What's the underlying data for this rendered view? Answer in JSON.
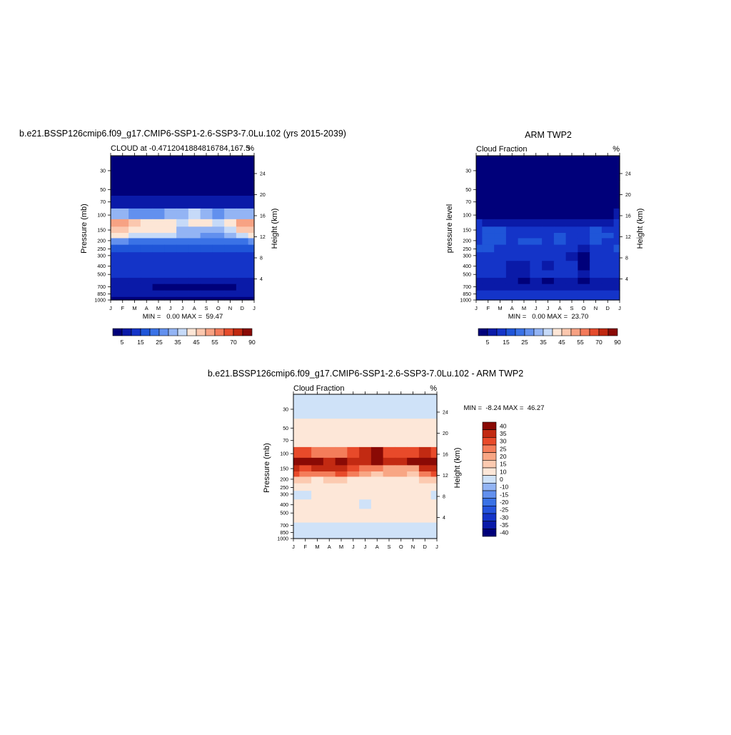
{
  "panels": {
    "model": {
      "title": "b.e21.BSSP126cmip6.f09_g17.CMIP6-SSP1-2.6-SSP3-7.0Lu.102 (yrs 2015-2039)",
      "left_label": "CLOUD at -0.4712041884816784,167.5",
      "right_label": "%",
      "ylabel": "Pressure (mb)",
      "y2label": "Height (km)",
      "stats": "MIN =   0.00 MAX =  59.47"
    },
    "obs": {
      "title": "ARM TWP2",
      "left_label": "Cloud Fraction",
      "right_label": "%",
      "ylabel": "pressure level",
      "y2label": "Height (km)",
      "stats": "MIN =   0.00 MAX =  23.70"
    },
    "diff": {
      "title": "b.e21.BSSP126cmip6.f09_g17.CMIP6-SSP1-2.6-SSP3-7.0Lu.102 - ARM TWP2",
      "left_label": "Cloud Fraction",
      "right_label": "%",
      "ylabel": "Pressure (mb)",
      "y2label": "Height (km)",
      "stats": "MIN =  -8.24 MAX =  46.27"
    }
  },
  "chart_data": [
    {
      "type": "heatmap",
      "title": "b.e21.BSSP126cmip6.f09_g17.CMIP6-SSP1-2.6-SSP3-7.0Lu.102 (yrs 2015-2039)",
      "subtitle": "CLOUD at -0.4712041884816784,167.5",
      "units": "%",
      "xlabel": "",
      "ylabel": "Pressure (mb)",
      "y2label": "Height (km)",
      "x_ticks": [
        "J",
        "F",
        "M",
        "A",
        "M",
        "J",
        "J",
        "A",
        "S",
        "O",
        "N",
        "D",
        "J"
      ],
      "y_ticks": [
        30,
        50,
        70,
        100,
        150,
        200,
        250,
        300,
        400,
        500,
        700,
        850,
        1000
      ],
      "y2_ticks": [
        24,
        20,
        16,
        12,
        8,
        4
      ],
      "ylim": [
        1000,
        20
      ],
      "y_scale": "log",
      "min": 0.0,
      "max": 59.47,
      "colorbar_levels": [
        5,
        10,
        15,
        20,
        25,
        30,
        35,
        40,
        45,
        50,
        55,
        60,
        70,
        80,
        90
      ],
      "colorbar_labels": [
        "5",
        "15",
        "25",
        "35",
        "45",
        "55",
        "70",
        "90"
      ],
      "levels_mb": [
        30,
        50,
        70,
        100,
        125,
        150,
        175,
        200,
        250,
        300,
        400,
        500,
        600,
        700,
        850,
        1000
      ],
      "values": [
        [
          2,
          2,
          2,
          2,
          2,
          2,
          2,
          2,
          2,
          2,
          2,
          2,
          2
        ],
        [
          3,
          3,
          3,
          3,
          3,
          3,
          3,
          3,
          3,
          3,
          3,
          3,
          3
        ],
        [
          9,
          9,
          7,
          5,
          5,
          5,
          5,
          5,
          5,
          5,
          5,
          7,
          9
        ],
        [
          32,
          30,
          28,
          25,
          25,
          30,
          32,
          38,
          30,
          28,
          30,
          32,
          32
        ],
        [
          52,
          50,
          45,
          40,
          42,
          40,
          38,
          42,
          40,
          38,
          42,
          52,
          52
        ],
        [
          48,
          46,
          44,
          42,
          42,
          40,
          32,
          33,
          30,
          30,
          35,
          46,
          48
        ],
        [
          40,
          40,
          38,
          38,
          38,
          36,
          32,
          30,
          28,
          28,
          32,
          38,
          40
        ],
        [
          25,
          25,
          24,
          24,
          24,
          24,
          22,
          22,
          20,
          20,
          22,
          24,
          25
        ],
        [
          15,
          15,
          15,
          15,
          15,
          15,
          15,
          15,
          15,
          15,
          15,
          15,
          15
        ],
        [
          13,
          12,
          12,
          12,
          12,
          12,
          12,
          12,
          12,
          12,
          12,
          12,
          13
        ],
        [
          12,
          12,
          13,
          12,
          12,
          12,
          10,
          11,
          10,
          11,
          11,
          12,
          12
        ],
        [
          11,
          11,
          11,
          11,
          12,
          13,
          10,
          10,
          11,
          12,
          11,
          11,
          11
        ],
        [
          9,
          9,
          9,
          9,
          9,
          9,
          9,
          9,
          9,
          9,
          9,
          9,
          9
        ],
        [
          5,
          5,
          5,
          5,
          4,
          3,
          4,
          4,
          2,
          4,
          4,
          5,
          5
        ],
        [
          5,
          5,
          5,
          5,
          5,
          5,
          5,
          5,
          5,
          5,
          5,
          5,
          5
        ],
        [
          3,
          3,
          3,
          3,
          3,
          3,
          3,
          3,
          3,
          3,
          3,
          3,
          3
        ]
      ]
    },
    {
      "type": "heatmap",
      "title": "ARM TWP2",
      "subtitle": "Cloud Fraction",
      "units": "%",
      "xlabel": "",
      "ylabel": "pressure level",
      "y2label": "Height (km)",
      "x_ticks": [
        "J",
        "F",
        "M",
        "A",
        "M",
        "J",
        "J",
        "A",
        "S",
        "O",
        "N",
        "D",
        "J"
      ],
      "y_ticks": [
        30,
        50,
        70,
        100,
        150,
        200,
        250,
        300,
        400,
        500,
        700,
        850,
        1000
      ],
      "y2_ticks": [
        24,
        20,
        16,
        12,
        8,
        4
      ],
      "ylim": [
        1000,
        20
      ],
      "y_scale": "log",
      "min": 0.0,
      "max": 23.7,
      "colorbar_levels": [
        5,
        10,
        15,
        20,
        25,
        30,
        35,
        40,
        45,
        50,
        55,
        60,
        70,
        80,
        90
      ],
      "colorbar_labels": [
        "5",
        "15",
        "25",
        "35",
        "45",
        "55",
        "70",
        "90"
      ],
      "levels_mb": [
        30,
        50,
        70,
        100,
        125,
        150,
        175,
        200,
        250,
        300,
        400,
        500,
        600,
        700,
        850,
        1000
      ],
      "values": [
        [
          2,
          2,
          2,
          2,
          2,
          2,
          2,
          2,
          2,
          2,
          2,
          2,
          2
        ],
        [
          2,
          2,
          2,
          2,
          2,
          2,
          2,
          2,
          2,
          2,
          2,
          2,
          2
        ],
        [
          2,
          2,
          2,
          2,
          2,
          2,
          2,
          2,
          2,
          2,
          2,
          2,
          2
        ],
        [
          4,
          4,
          4,
          3,
          3,
          3,
          3,
          3,
          3,
          3,
          3,
          4,
          5
        ],
        [
          10,
          8,
          8,
          7,
          7,
          6,
          6,
          7,
          7,
          6,
          7,
          9,
          11
        ],
        [
          14,
          18,
          15,
          13,
          12,
          14,
          13,
          13,
          12,
          14,
          18,
          14,
          14
        ],
        [
          12,
          18,
          16,
          14,
          13,
          13,
          14,
          16,
          13,
          13,
          18,
          16,
          12
        ],
        [
          13,
          15,
          19,
          12,
          15,
          16,
          14,
          15,
          12,
          12,
          15,
          13,
          13
        ],
        [
          15,
          15,
          13,
          12,
          12,
          13,
          12,
          12,
          11,
          8,
          12,
          13,
          15
        ],
        [
          12,
          12,
          11,
          10,
          11,
          11,
          11,
          11,
          9,
          4,
          11,
          11,
          12
        ],
        [
          11,
          11,
          10,
          9,
          9,
          10,
          9,
          10,
          10,
          4,
          10,
          10,
          11
        ],
        [
          10,
          10,
          10,
          9,
          9,
          10,
          10,
          10,
          10,
          7,
          10,
          10,
          10
        ],
        [
          8,
          8,
          8,
          8,
          4,
          7,
          4,
          7,
          7,
          4,
          7,
          8,
          8
        ],
        [
          7,
          7,
          7,
          7,
          7,
          7,
          7,
          7,
          7,
          7,
          7,
          7,
          7
        ],
        [
          10,
          10,
          10,
          10,
          10,
          10,
          10,
          10,
          10,
          10,
          10,
          10,
          10
        ],
        [
          12,
          12,
          12,
          12,
          12,
          12,
          12,
          12,
          12,
          12,
          12,
          12,
          12
        ]
      ]
    },
    {
      "type": "heatmap",
      "title": "b.e21.BSSP126cmip6.f09_g17.CMIP6-SSP1-2.6-SSP3-7.0Lu.102 - ARM TWP2",
      "subtitle": "Cloud Fraction",
      "units": "%",
      "xlabel": "",
      "ylabel": "Pressure (mb)",
      "y2label": "Height (km)",
      "x_ticks": [
        "J",
        "F",
        "M",
        "A",
        "M",
        "J",
        "J",
        "A",
        "S",
        "O",
        "N",
        "D",
        "J"
      ],
      "y_ticks": [
        30,
        50,
        70,
        100,
        150,
        200,
        250,
        300,
        400,
        500,
        700,
        850,
        1000
      ],
      "y2_ticks": [
        24,
        20,
        16,
        12,
        8,
        4
      ],
      "ylim": [
        1000,
        20
      ],
      "y_scale": "log",
      "min": -8.24,
      "max": 46.27,
      "colorbar_levels": [
        -40,
        -35,
        -30,
        -25,
        -20,
        -15,
        -10,
        0,
        10,
        15,
        20,
        25,
        30,
        35,
        40
      ],
      "colorbar_labels": [
        "40",
        "35",
        "30",
        "25",
        "20",
        "15",
        "10",
        "0",
        "-10",
        "-15",
        "-20",
        "-25",
        "-30",
        "-35",
        "-40"
      ],
      "levels_mb": [
        30,
        50,
        70,
        100,
        125,
        150,
        175,
        200,
        250,
        300,
        400,
        500,
        600,
        700,
        850,
        1000
      ],
      "values": [
        [
          -3,
          -3,
          -3,
          -3,
          -3,
          -3,
          -3,
          -3,
          -3,
          -3,
          -3,
          -3,
          -3
        ],
        [
          2,
          2,
          2,
          2,
          2,
          2,
          2,
          2,
          2,
          2,
          2,
          2,
          2
        ],
        [
          4,
          4,
          4,
          4,
          4,
          4,
          4,
          4,
          4,
          4,
          4,
          4,
          4
        ],
        [
          28,
          26,
          24,
          22,
          22,
          26,
          30,
          36,
          28,
          26,
          28,
          30,
          28
        ],
        [
          44,
          42,
          38,
          34,
          36,
          34,
          32,
          36,
          34,
          32,
          36,
          44,
          42
        ],
        [
          33,
          28,
          30,
          30,
          30,
          26,
          20,
          20,
          18,
          18,
          17,
          32,
          33
        ],
        [
          28,
          22,
          22,
          24,
          25,
          23,
          18,
          14,
          15,
          15,
          14,
          22,
          28
        ],
        [
          12,
          10,
          6,
          12,
          10,
          8,
          8,
          7,
          8,
          8,
          7,
          11,
          12
        ],
        [
          1,
          1,
          2,
          3,
          3,
          2,
          3,
          3,
          4,
          5,
          3,
          2,
          1
        ],
        [
          -2,
          -3,
          2,
          2,
          1,
          1,
          1,
          1,
          3,
          6,
          1,
          1,
          -2
        ],
        [
          1,
          1,
          3,
          3,
          3,
          2,
          -1,
          1,
          1,
          8,
          1,
          2,
          1
        ],
        [
          2,
          2,
          2,
          3,
          4,
          4,
          1,
          1,
          2,
          5,
          1,
          2,
          2
        ],
        [
          1,
          1,
          1,
          1,
          5,
          2,
          5,
          3,
          3,
          6,
          3,
          1,
          1
        ],
        [
          -2,
          -2,
          -2,
          -2,
          -3,
          -4,
          -3,
          -3,
          -5,
          -3,
          -3,
          -2,
          -2
        ],
        [
          -5,
          -5,
          -5,
          -5,
          -5,
          -5,
          -5,
          -5,
          -5,
          -5,
          -5,
          -5,
          -5
        ],
        [
          -8,
          -8,
          -8,
          -8,
          -8,
          -8,
          -8,
          -8,
          -8,
          -8,
          -8,
          -8,
          -8
        ]
      ]
    }
  ],
  "colors": {
    "abs_palette": [
      "#00007a",
      "#0a1aa8",
      "#1434c8",
      "#1f55d8",
      "#3a72e6",
      "#6290ee",
      "#93b4f4",
      "#c6daf8",
      "#fde6d6",
      "#fbc7ae",
      "#f7a283",
      "#f37a5a",
      "#e54b2c",
      "#c02810",
      "#8a0a05"
    ],
    "diff_palette": [
      "#00007a",
      "#0a1aa8",
      "#1434c8",
      "#2453dc",
      "#3a72e6",
      "#6290ee",
      "#93b4f4",
      "#cfe2f8",
      "#fde7d8",
      "#fccab0",
      "#f8a684",
      "#f47d5a",
      "#e84a2a",
      "#c22a12",
      "#8a0a05"
    ]
  }
}
